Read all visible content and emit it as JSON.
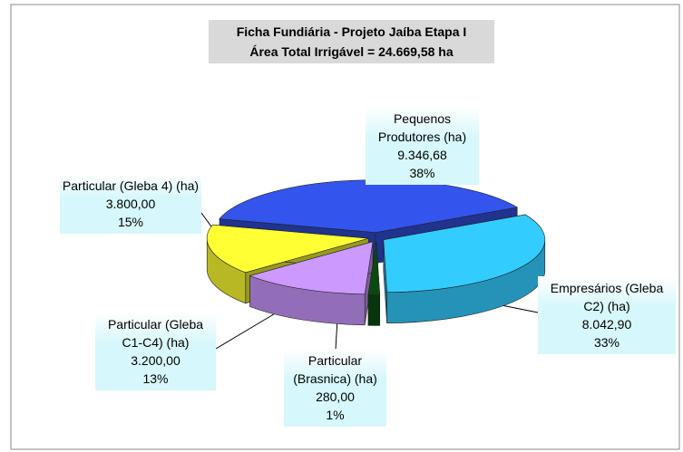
{
  "chart_data": {
    "type": "pie3d",
    "title": "Ficha Fundiária - Projeto Jaíba Etapa I",
    "subtitle": "Área Total Irrigável = 24.669,58 ha",
    "categories": [
      "Pequenos Produtores (ha)",
      "Empresários (Gleba C2) (ha)",
      "Particular (Brasnica) (ha)",
      "Particular (Gleba C1-C4) (ha)",
      "Particular (Gleba 4) (ha)"
    ],
    "values": [
      9346.68,
      8042.9,
      280.0,
      3200.0,
      3800.0
    ],
    "value_labels": [
      "9.346,68",
      "8.042,90",
      "280,00",
      "3.200,00",
      "3.800,00"
    ],
    "percent_labels": [
      "38%",
      "33%",
      "1%",
      "13%",
      "15%"
    ],
    "colors": [
      "#3355ee",
      "#33ccff",
      "#0a4a10",
      "#cc99ff",
      "#ffff33"
    ]
  }
}
